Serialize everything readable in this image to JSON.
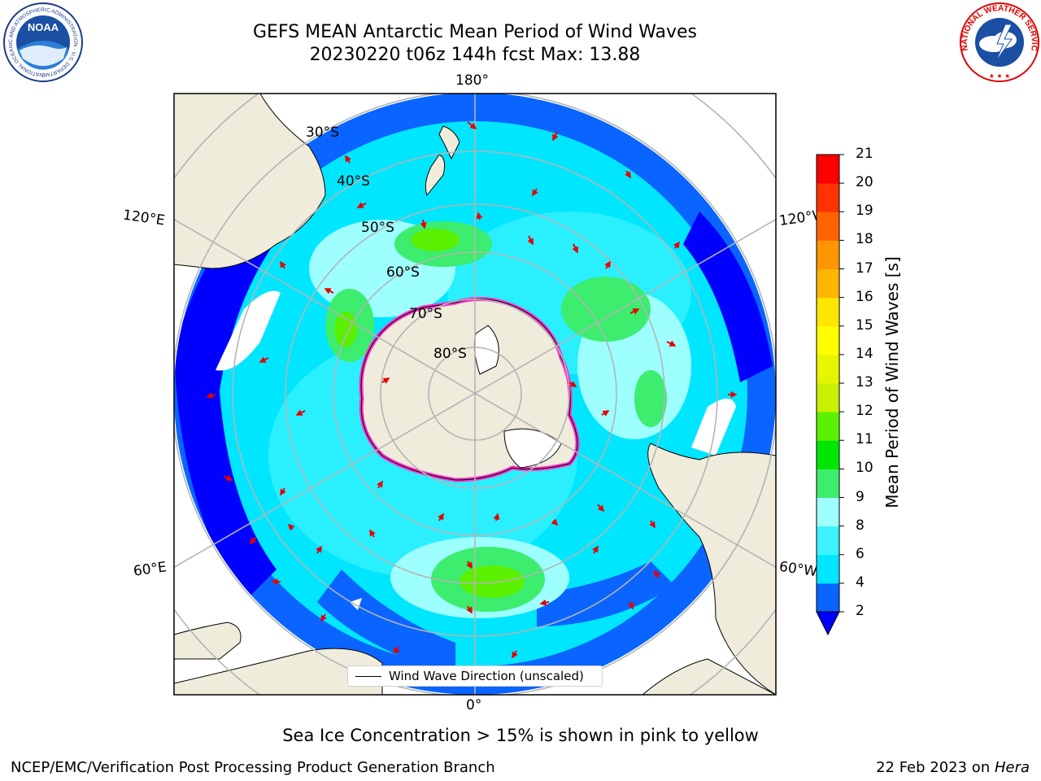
{
  "header": {
    "title_line1": "GEFS MEAN Antarctic Mean Period of Wind Waves",
    "title_line2": "20230220 t06z 144h fcst   Max: 13.88",
    "left_logo": "noaa-logo",
    "left_logo_text": "NOAA",
    "left_logo_ring_text": "NATIONAL OCEANIC AND ATMOSPHERIC ADMINISTRATION · U.S. DEPARTMENT OF COMMERCE",
    "right_logo": "national-weather-service-logo",
    "right_logo_ring_text": "NATIONAL WEATHER SERVICE"
  },
  "map": {
    "projection": "south-polar-stereographic",
    "longitude_labels": {
      "top": "180°",
      "bottom": "0°",
      "upper_left": "120°E",
      "lower_left": "60°E",
      "upper_right": "120°W",
      "lower_right": "60°W"
    },
    "latitude_labels": [
      "30°S",
      "40°S",
      "50°S",
      "60°S",
      "70°S",
      "80°S"
    ],
    "legend_text": "Wind Wave Direction (unscaled)",
    "vector_color": "#e60000",
    "land_color": "#efecdc",
    "ice_edge_colors": [
      "#ff33cc",
      "#ffff66"
    ]
  },
  "colorbar": {
    "label": "Mean Period of Wind Waves [s]",
    "ticks": [
      "21",
      "20",
      "19",
      "18",
      "17",
      "16",
      "15",
      "14",
      "13",
      "12",
      "11",
      "10",
      "9",
      "8",
      "6",
      "4",
      "2"
    ],
    "levels": [
      2,
      4,
      6,
      8,
      9,
      10,
      11,
      12,
      13,
      14,
      15,
      16,
      17,
      18,
      19,
      20,
      21
    ],
    "colors": [
      "#0a64ff",
      "#00e6ff",
      "#3cf2ff",
      "#9effff",
      "#3ced6e",
      "#00e600",
      "#5bf000",
      "#c8f000",
      "#e6f500",
      "#ffff00",
      "#ffe600",
      "#ffb400",
      "#ff9600",
      "#ff6400",
      "#ff3200",
      "#ff0000"
    ],
    "under_color": "#0000ff",
    "extend": "min"
  },
  "footer": {
    "note": "Sea Ice Concentration > 15% is shown in pink to yellow",
    "credit": "NCEP/EMC/Verification Post Processing Product Generation Branch",
    "date": "22 Feb 2023 on ",
    "machine": "Hera"
  }
}
